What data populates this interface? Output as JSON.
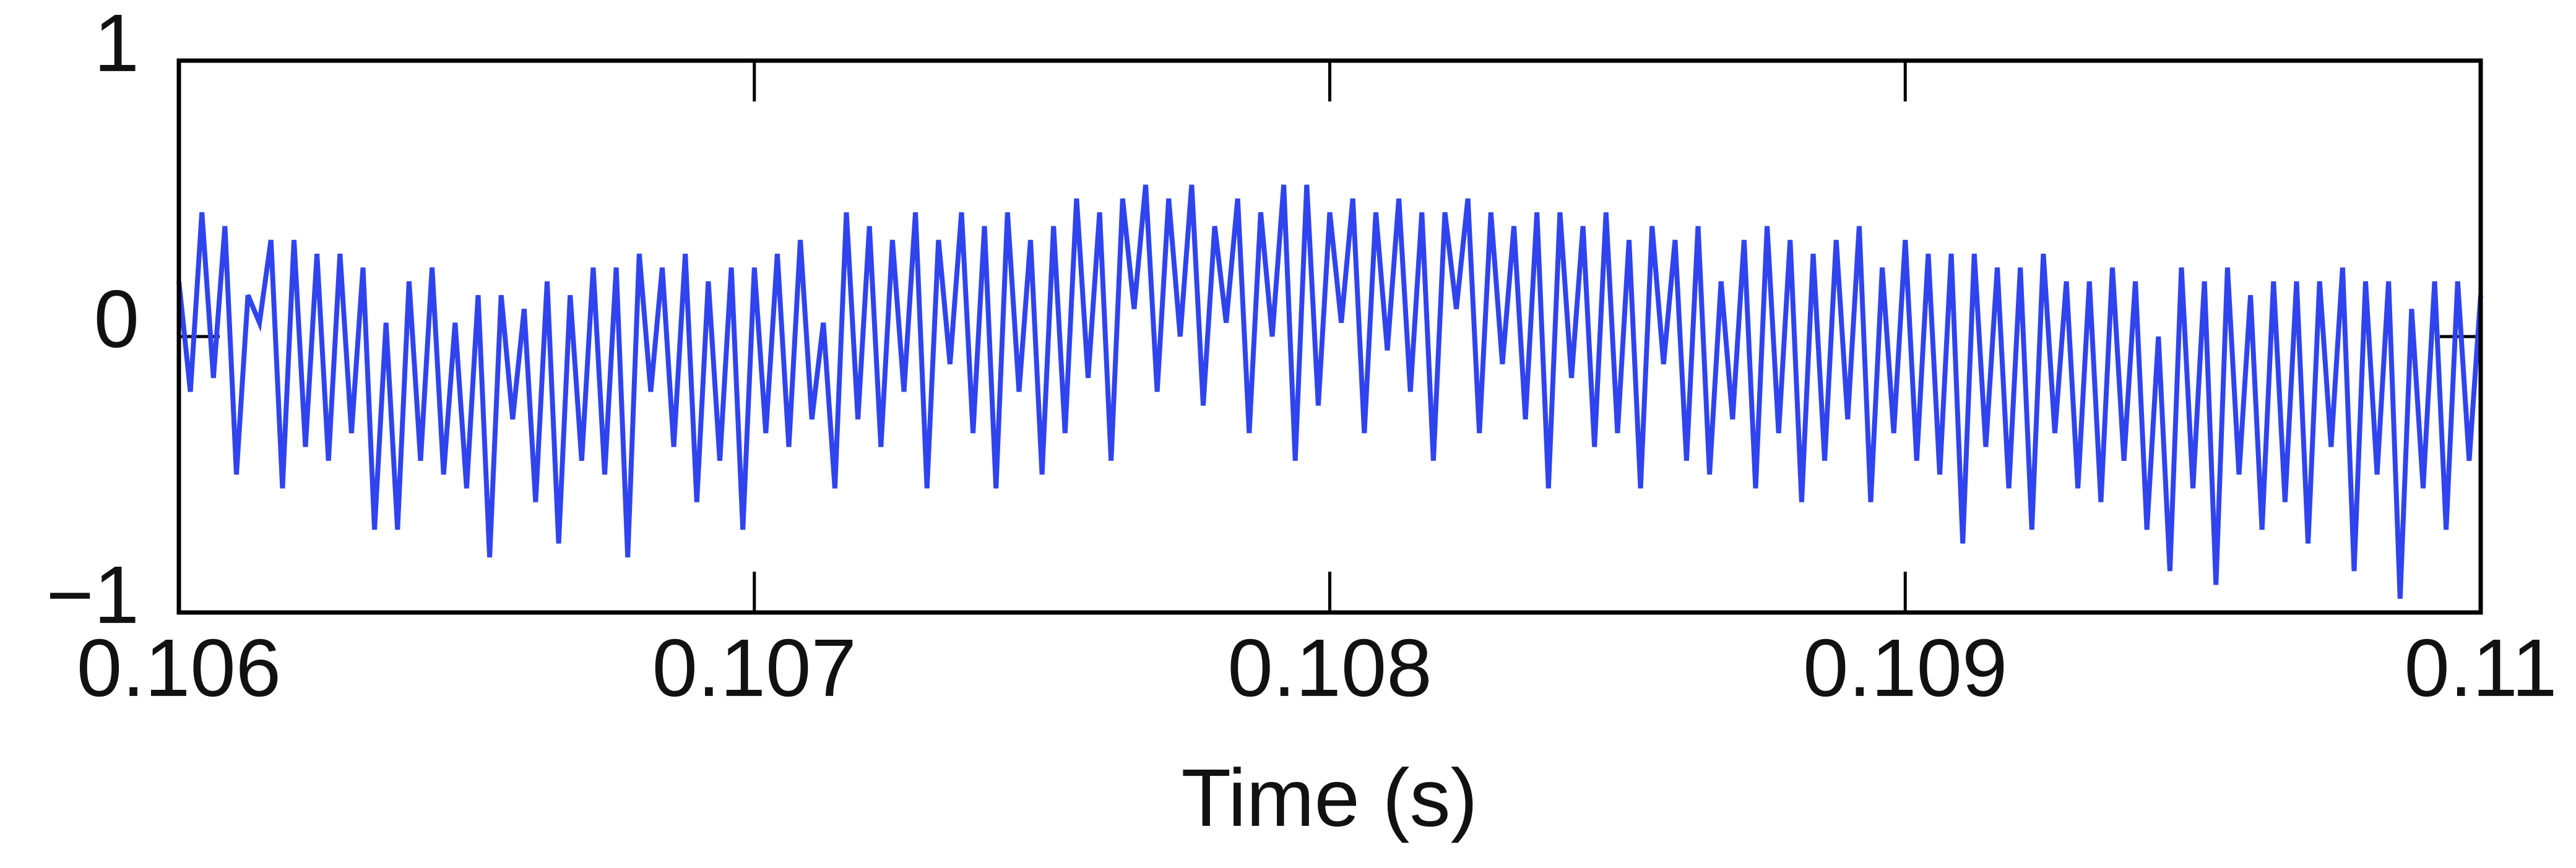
{
  "chart_data": {
    "type": "line",
    "xlabel": "Time (s)",
    "color": "#2f44ee",
    "xlim": [
      0.106,
      0.11
    ],
    "xticks": [
      0.106,
      0.107,
      0.108,
      0.109,
      0.11
    ],
    "ylim": [
      -1,
      1
    ],
    "yticks": [
      {
        "value": -1,
        "label": "−1"
      },
      0,
      1
    ],
    "x": [
      0.106,
      0.10602,
      0.10604,
      0.10606,
      0.10608,
      0.1061,
      0.10612,
      0.10614,
      0.10616,
      0.10618,
      0.1062,
      0.10622,
      0.10624,
      0.10626,
      0.10628,
      0.1063,
      0.10632,
      0.10634,
      0.10636,
      0.10638,
      0.1064,
      0.10642,
      0.10644,
      0.10646,
      0.10648,
      0.1065,
      0.10652,
      0.10654,
      0.10656,
      0.10658,
      0.1066,
      0.10662,
      0.10664,
      0.10666,
      0.10668,
      0.1067,
      0.10672,
      0.10674,
      0.10676,
      0.10678,
      0.1068,
      0.10682,
      0.10684,
      0.10686,
      0.10688,
      0.1069,
      0.10692,
      0.10694,
      0.10696,
      0.10698,
      0.107,
      0.10702,
      0.10704,
      0.10706,
      0.10708,
      0.1071,
      0.10712,
      0.10714,
      0.10716,
      0.10718,
      0.1072,
      0.10722,
      0.10724,
      0.10726,
      0.10728,
      0.1073,
      0.10732,
      0.10734,
      0.10736,
      0.10738,
      0.1074,
      0.10742,
      0.10744,
      0.10746,
      0.10748,
      0.1075,
      0.10752,
      0.10754,
      0.10756,
      0.10758,
      0.1076,
      0.10762,
      0.10764,
      0.10766,
      0.10768,
      0.1077,
      0.10772,
      0.10774,
      0.10776,
      0.10778,
      0.1078,
      0.10782,
      0.10784,
      0.10786,
      0.10788,
      0.1079,
      0.10792,
      0.10794,
      0.10796,
      0.10798,
      0.108,
      0.10802,
      0.10804,
      0.10806,
      0.10808,
      0.1081,
      0.10812,
      0.10814,
      0.10816,
      0.10818,
      0.1082,
      0.10822,
      0.10824,
      0.10826,
      0.10828,
      0.1083,
      0.10832,
      0.10834,
      0.10836,
      0.10838,
      0.1084,
      0.10842,
      0.10844,
      0.10846,
      0.10848,
      0.1085,
      0.10852,
      0.10854,
      0.10856,
      0.10858,
      0.1086,
      0.10862,
      0.10864,
      0.10866,
      0.10868,
      0.1087,
      0.10872,
      0.10874,
      0.10876,
      0.10878,
      0.1088,
      0.10882,
      0.10884,
      0.10886,
      0.10888,
      0.1089,
      0.10892,
      0.10894,
      0.10896,
      0.10898,
      0.109,
      0.10902,
      0.10904,
      0.10906,
      0.10908,
      0.1091,
      0.10912,
      0.10914,
      0.10916,
      0.10918,
      0.1092,
      0.10922,
      0.10924,
      0.10926,
      0.10928,
      0.1093,
      0.10932,
      0.10934,
      0.10936,
      0.10938,
      0.1094,
      0.10942,
      0.10944,
      0.10946,
      0.10948,
      0.1095,
      0.10952,
      0.10954,
      0.10956,
      0.10958,
      0.1096,
      0.10962,
      0.10964,
      0.10966,
      0.10968,
      0.1097,
      0.10972,
      0.10974,
      0.10976,
      0.10978,
      0.1098,
      0.10982,
      0.10984,
      0.10986,
      0.10988,
      0.1099,
      0.10992,
      0.10994,
      0.10996,
      0.10998,
      0.11
    ],
    "values": [
      0.2,
      -0.2,
      0.45,
      -0.15,
      0.4,
      -0.5,
      0.15,
      0.05,
      0.35,
      -0.55,
      0.35,
      -0.4,
      0.3,
      -0.45,
      0.3,
      -0.35,
      0.25,
      -0.7,
      0.05,
      -0.7,
      0.2,
      -0.45,
      0.25,
      -0.5,
      0.05,
      -0.55,
      0.15,
      -0.8,
      0.15,
      -0.3,
      0.1,
      -0.6,
      0.2,
      -0.75,
      0.15,
      -0.45,
      0.25,
      -0.5,
      0.25,
      -0.8,
      0.3,
      -0.2,
      0.25,
      -0.4,
      0.3,
      -0.6,
      0.2,
      -0.45,
      0.25,
      -0.7,
      0.25,
      -0.35,
      0.3,
      -0.4,
      0.35,
      -0.3,
      0.05,
      -0.55,
      0.45,
      -0.3,
      0.4,
      -0.4,
      0.35,
      -0.2,
      0.45,
      -0.55,
      0.35,
      -0.1,
      0.45,
      -0.35,
      0.4,
      -0.55,
      0.45,
      -0.2,
      0.35,
      -0.5,
      0.4,
      -0.35,
      0.5,
      -0.15,
      0.45,
      -0.45,
      0.5,
      0.1,
      0.55,
      -0.2,
      0.5,
      0.0,
      0.55,
      -0.25,
      0.4,
      0.05,
      0.5,
      -0.35,
      0.45,
      0.0,
      0.55,
      -0.45,
      0.55,
      -0.25,
      0.45,
      0.05,
      0.5,
      -0.35,
      0.45,
      -0.05,
      0.5,
      -0.2,
      0.45,
      -0.45,
      0.45,
      0.1,
      0.5,
      -0.35,
      0.45,
      -0.1,
      0.4,
      -0.3,
      0.45,
      -0.55,
      0.45,
      -0.15,
      0.4,
      -0.4,
      0.45,
      -0.35,
      0.35,
      -0.55,
      0.4,
      -0.1,
      0.35,
      -0.45,
      0.4,
      -0.5,
      0.2,
      -0.3,
      0.35,
      -0.55,
      0.4,
      -0.35,
      0.35,
      -0.6,
      0.3,
      -0.45,
      0.35,
      -0.3,
      0.4,
      -0.6,
      0.25,
      -0.35,
      0.35,
      -0.45,
      0.3,
      -0.5,
      0.3,
      -0.75,
      0.3,
      -0.4,
      0.25,
      -0.55,
      0.25,
      -0.7,
      0.3,
      -0.35,
      0.2,
      -0.55,
      0.2,
      -0.6,
      0.25,
      -0.45,
      0.2,
      -0.7,
      0.0,
      -0.85,
      0.25,
      -0.55,
      0.2,
      -0.9,
      0.25,
      -0.5,
      0.15,
      -0.7,
      0.2,
      -0.6,
      0.2,
      -0.75,
      0.2,
      -0.4,
      0.25,
      -0.85,
      0.2,
      -0.5,
      0.2,
      -0.95,
      0.1,
      -0.55,
      0.2,
      -0.7,
      0.2,
      -0.45,
      0.15
    ]
  }
}
